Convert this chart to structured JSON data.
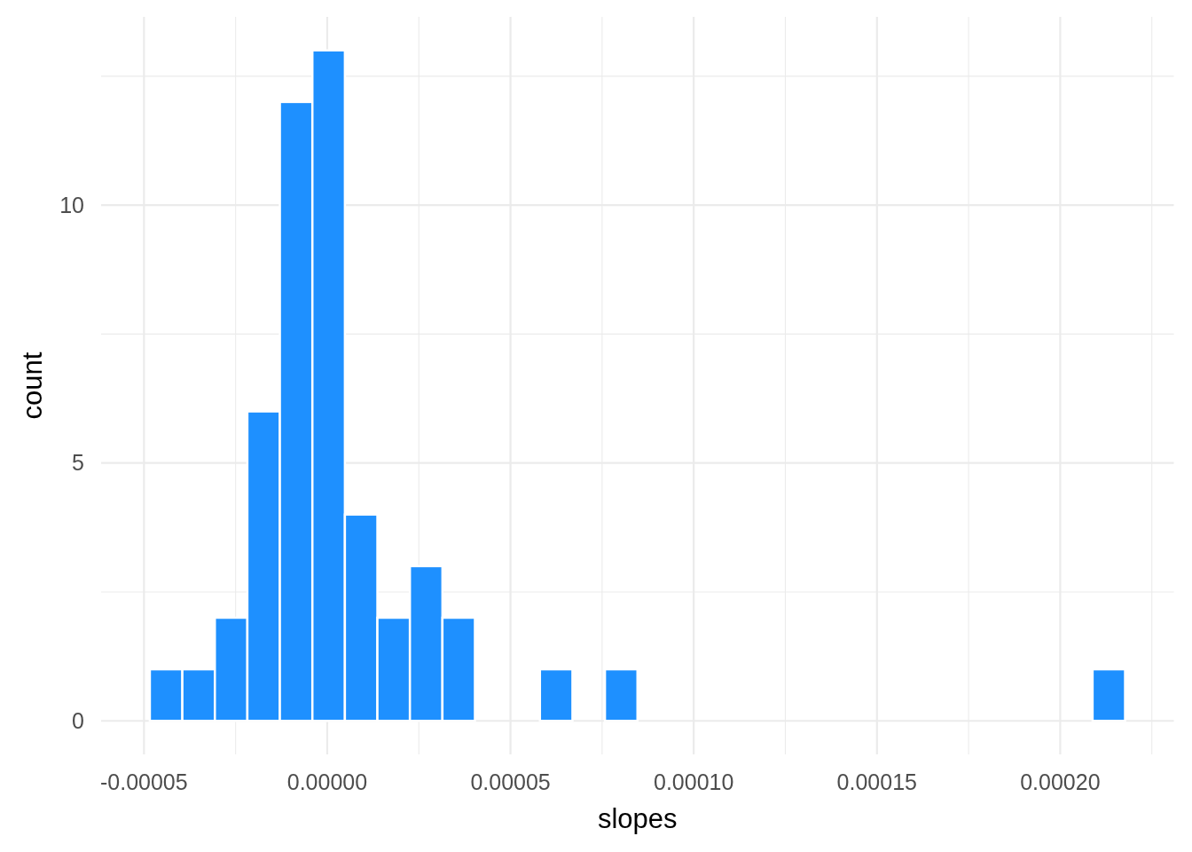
{
  "chart_data": {
    "type": "histogram",
    "xlabel": "slopes",
    "ylabel": "count",
    "color": "#1e90ff",
    "bins": [
      -4.84e-05,
      -3.953e-05,
      -3.066e-05,
      -2.179e-05,
      -1.292e-05,
      -4.05e-06,
      4.82e-06,
      1.369e-05,
      2.256e-05,
      3.143e-05,
      4.03e-05,
      4.917e-05,
      5.804e-05,
      6.691e-05,
      7.578e-05,
      8.465e-05,
      9.352e-05,
      0.00010239,
      0.00011126,
      0.00012013,
      0.000129,
      0.00013787,
      0.00014674,
      0.00015561,
      0.00016448,
      0.00017335,
      0.00018222,
      0.00019109,
      0.00019996,
      0.00020883,
      0.0002177
    ],
    "values": [
      1,
      1,
      2,
      6,
      12,
      13,
      4,
      2,
      3,
      2,
      0,
      0,
      1,
      0,
      1,
      0,
      0,
      0,
      0,
      0,
      0,
      0,
      0,
      0,
      0,
      0,
      0,
      0,
      0,
      1
    ],
    "xlim": [
      -6.17e-05,
      0.000231
    ],
    "ylim": [
      -0.65,
      13.65
    ],
    "xticks": [
      {
        "value": -5e-05,
        "label": "-0.00005"
      },
      {
        "value": -2.5e-05,
        "label": null
      },
      {
        "value": 0,
        "label": "0.00000"
      },
      {
        "value": 2.5e-05,
        "label": null
      },
      {
        "value": 5e-05,
        "label": "0.00005"
      },
      {
        "value": 7.5e-05,
        "label": null
      },
      {
        "value": 0.0001,
        "label": "0.00010"
      },
      {
        "value": 0.000125,
        "label": null
      },
      {
        "value": 0.00015,
        "label": "0.00015"
      },
      {
        "value": 0.000175,
        "label": null
      },
      {
        "value": 0.0002,
        "label": "0.00020"
      },
      {
        "value": 0.000225,
        "label": null
      }
    ],
    "yticks": [
      0,
      {
        "value": 2.5,
        "label": null
      },
      5,
      {
        "value": 7.5,
        "label": null
      },
      10,
      {
        "value": 12.5,
        "label": null
      }
    ],
    "grid": true
  }
}
